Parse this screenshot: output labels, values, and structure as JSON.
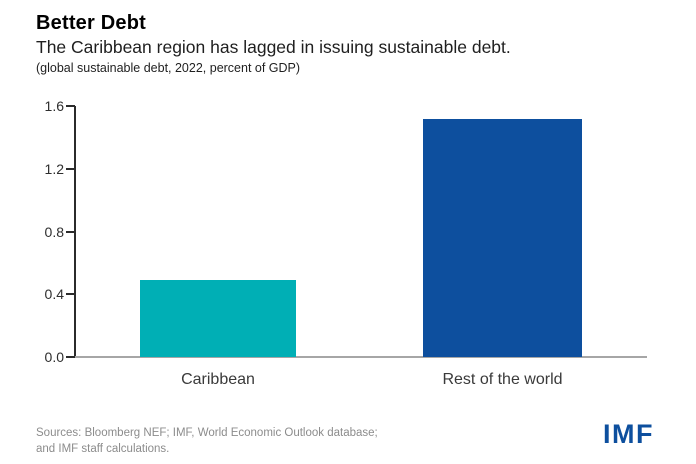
{
  "header": {
    "title": "Better Debt",
    "subtitle": "The Caribbean region has lagged in issuing sustainable debt.",
    "unit_note": "(global sustainable debt, 2022, percent of GDP)"
  },
  "chart_data": {
    "type": "bar",
    "categories": [
      "Caribbean",
      "Rest of the world"
    ],
    "values": [
      0.49,
      1.52
    ],
    "bar_colors": [
      "#00AFB5",
      "#0D4F9E"
    ],
    "title": "Better Debt",
    "subtitle": "The Caribbean region has lagged in issuing sustainable debt.",
    "unit_note": "(global sustainable debt, 2022, percent of GDP)",
    "xlabel": "",
    "ylabel": "",
    "ylim": [
      0,
      1.6
    ],
    "yticks": [
      0,
      0.4,
      0.8,
      1.2,
      1.6
    ],
    "ytick_labels": [
      "0.0",
      "0.4",
      "0.8",
      "1.2",
      "1.6"
    ],
    "grid": false,
    "legend": "none"
  },
  "footer": {
    "sources_line1": "Sources: Bloomberg NEF; IMF, World Economic Outlook database;",
    "sources_line2": "and IMF staff calculations.",
    "logo_text": "IMF",
    "logo_color": "#0D4F9E"
  }
}
